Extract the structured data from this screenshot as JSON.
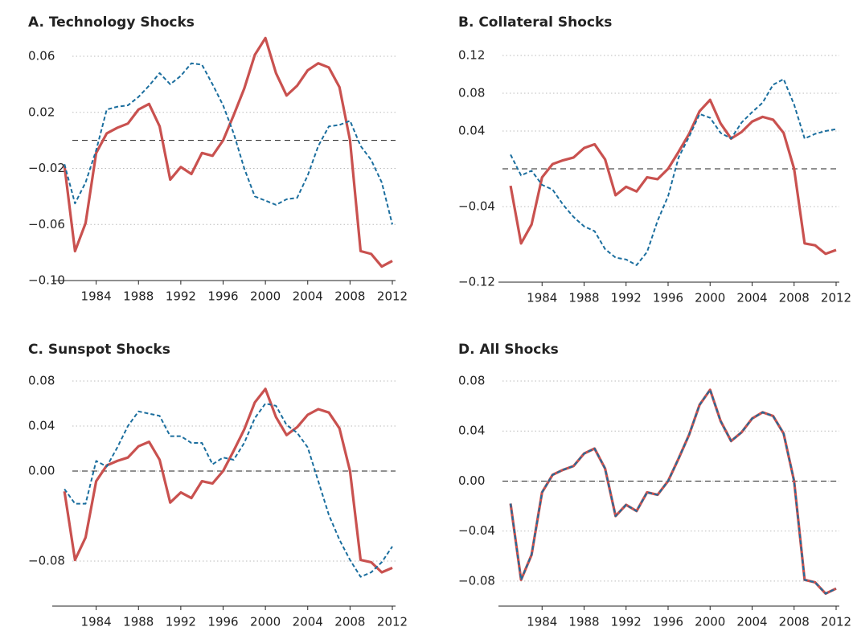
{
  "chart_data": [
    {
      "type": "line",
      "title": "A. Technology Shocks",
      "x": [
        1981,
        1982,
        1983,
        1984,
        1985,
        1986,
        1987,
        1988,
        1989,
        1990,
        1991,
        1992,
        1993,
        1994,
        1995,
        1996,
        1997,
        1998,
        1999,
        2000,
        2001,
        2002,
        2003,
        2004,
        2005,
        2006,
        2007,
        2008,
        2009,
        2010,
        2011,
        2012
      ],
      "series": [
        {
          "color": "#c9514f",
          "style": "solid",
          "values": [
            -0.018,
            -0.079,
            -0.059,
            -0.009,
            0.005,
            0.009,
            0.012,
            0.022,
            0.026,
            0.01,
            -0.028,
            -0.019,
            -0.024,
            -0.009,
            -0.011,
            0.0,
            0.018,
            0.037,
            0.061,
            0.073,
            0.048,
            0.032,
            0.039,
            0.05,
            0.055,
            0.052,
            0.038,
            0.0,
            -0.079,
            -0.081,
            -0.09,
            -0.086
          ]
        },
        {
          "color": "#1b6e9e",
          "style": "dashed",
          "values": [
            -0.017,
            -0.045,
            -0.03,
            -0.007,
            0.022,
            0.024,
            0.025,
            0.031,
            0.039,
            0.048,
            0.04,
            0.046,
            0.055,
            0.054,
            0.04,
            0.025,
            0.005,
            -0.02,
            -0.04,
            -0.043,
            -0.046,
            -0.042,
            -0.041,
            -0.025,
            -0.004,
            0.01,
            0.011,
            0.014,
            -0.004,
            -0.014,
            -0.03,
            -0.06
          ]
        }
      ],
      "xlim": [
        1980,
        2012
      ],
      "xticks": [
        1984,
        1988,
        1992,
        1996,
        2000,
        2004,
        2008,
        2012
      ],
      "ylim": [
        -0.1,
        0.06
      ],
      "yticks": [
        {
          "value": -0.1,
          "label": "−0.10"
        },
        {
          "value": -0.06,
          "label": "−0.06"
        },
        {
          "value": -0.02,
          "label": "−0.02"
        },
        0.02,
        0.06
      ],
      "reference_line": 0,
      "grid": true
    },
    {
      "type": "line",
      "title": "B. Collateral Shocks",
      "x": [
        1981,
        1982,
        1983,
        1984,
        1985,
        1986,
        1987,
        1988,
        1989,
        1990,
        1991,
        1992,
        1993,
        1994,
        1995,
        1996,
        1997,
        1998,
        1999,
        2000,
        2001,
        2002,
        2003,
        2004,
        2005,
        2006,
        2007,
        2008,
        2009,
        2010,
        2011,
        2012
      ],
      "series": [
        {
          "color": "#c9514f",
          "style": "solid",
          "values": [
            -0.018,
            -0.079,
            -0.059,
            -0.009,
            0.005,
            0.009,
            0.012,
            0.022,
            0.026,
            0.01,
            -0.028,
            -0.019,
            -0.024,
            -0.009,
            -0.011,
            0.0,
            0.018,
            0.037,
            0.061,
            0.073,
            0.048,
            0.032,
            0.039,
            0.05,
            0.055,
            0.052,
            0.038,
            0.0,
            -0.079,
            -0.081,
            -0.09,
            -0.086
          ]
        },
        {
          "color": "#1b6e9e",
          "style": "dashed",
          "values": [
            0.015,
            -0.007,
            -0.002,
            -0.017,
            -0.022,
            -0.038,
            -0.051,
            -0.061,
            -0.066,
            -0.085,
            -0.094,
            -0.096,
            -0.102,
            -0.088,
            -0.055,
            -0.029,
            0.012,
            0.034,
            0.058,
            0.054,
            0.038,
            0.032,
            0.049,
            0.06,
            0.07,
            0.089,
            0.095,
            0.068,
            0.032,
            0.037,
            0.04,
            0.042
          ]
        }
      ],
      "xlim": [
        1980,
        2012
      ],
      "xticks": [
        1984,
        1988,
        1992,
        1996,
        2000,
        2004,
        2008,
        2012
      ],
      "ylim": [
        -0.12,
        0.12
      ],
      "yticks": [
        {
          "value": -0.12,
          "label": "−0.12"
        },
        {
          "value": -0.04,
          "label": "−0.04"
        },
        0.04,
        0.08,
        0.12
      ],
      "reference_line": 0,
      "grid": true
    },
    {
      "type": "line",
      "title": "C. Sunspot Shocks",
      "x": [
        1981,
        1982,
        1983,
        1984,
        1985,
        1986,
        1987,
        1988,
        1989,
        1990,
        1991,
        1992,
        1993,
        1994,
        1995,
        1996,
        1997,
        1998,
        1999,
        2000,
        2001,
        2002,
        2003,
        2004,
        2005,
        2006,
        2007,
        2008,
        2009,
        2010,
        2011,
        2012
      ],
      "series": [
        {
          "color": "#c9514f",
          "style": "solid",
          "values": [
            -0.018,
            -0.079,
            -0.059,
            -0.009,
            0.005,
            0.009,
            0.012,
            0.022,
            0.026,
            0.01,
            -0.028,
            -0.019,
            -0.024,
            -0.009,
            -0.011,
            0.0,
            0.018,
            0.037,
            0.061,
            0.073,
            0.048,
            0.032,
            0.039,
            0.05,
            0.055,
            0.052,
            0.038,
            0.0,
            -0.079,
            -0.081,
            -0.09,
            -0.086
          ]
        },
        {
          "color": "#1b6e9e",
          "style": "dashed",
          "values": [
            -0.016,
            -0.029,
            -0.029,
            0.009,
            0.004,
            0.021,
            0.04,
            0.053,
            0.051,
            0.049,
            0.031,
            0.031,
            0.025,
            0.025,
            0.006,
            0.012,
            0.01,
            0.025,
            0.047,
            0.06,
            0.058,
            0.041,
            0.034,
            0.021,
            -0.009,
            -0.039,
            -0.061,
            -0.079,
            -0.094,
            -0.09,
            -0.081,
            -0.067
          ]
        }
      ],
      "xlim": [
        1980,
        2012
      ],
      "xticks": [
        1984,
        1988,
        1992,
        1996,
        2000,
        2004,
        2008,
        2012
      ],
      "ylim": [
        -0.12,
        0.08
      ],
      "yticks": [
        {
          "value": -0.08,
          "label": "−0.08"
        },
        {
          "value": 0,
          "label": "0.00"
        },
        0.04,
        0.08
      ],
      "reference_line": 0,
      "grid": true
    },
    {
      "type": "line",
      "title": "D. All Shocks",
      "x": [
        1981,
        1982,
        1983,
        1984,
        1985,
        1986,
        1987,
        1988,
        1989,
        1990,
        1991,
        1992,
        1993,
        1994,
        1995,
        1996,
        1997,
        1998,
        1999,
        2000,
        2001,
        2002,
        2003,
        2004,
        2005,
        2006,
        2007,
        2008,
        2009,
        2010,
        2011,
        2012
      ],
      "series": [
        {
          "color": "#c9514f",
          "style": "solid",
          "values": [
            -0.018,
            -0.079,
            -0.059,
            -0.009,
            0.005,
            0.009,
            0.012,
            0.022,
            0.026,
            0.01,
            -0.028,
            -0.019,
            -0.024,
            -0.009,
            -0.011,
            0.0,
            0.018,
            0.037,
            0.061,
            0.073,
            0.048,
            0.032,
            0.039,
            0.05,
            0.055,
            0.052,
            0.038,
            0.0,
            -0.079,
            -0.081,
            -0.09,
            -0.086
          ]
        },
        {
          "color": "#1b6e9e",
          "style": "dashed",
          "values": [
            -0.018,
            -0.079,
            -0.059,
            -0.009,
            0.005,
            0.009,
            0.012,
            0.022,
            0.026,
            0.01,
            -0.028,
            -0.019,
            -0.024,
            -0.009,
            -0.011,
            0.0,
            0.018,
            0.037,
            0.061,
            0.073,
            0.048,
            0.032,
            0.039,
            0.05,
            0.055,
            0.052,
            0.038,
            0.0,
            -0.079,
            -0.081,
            -0.09,
            -0.086
          ]
        }
      ],
      "xlim": [
        1980,
        2012
      ],
      "xticks": [
        1984,
        1988,
        1992,
        1996,
        2000,
        2004,
        2008,
        2012
      ],
      "ylim": [
        -0.1,
        0.08
      ],
      "yticks": [
        {
          "value": -0.08,
          "label": "−0.08"
        },
        {
          "value": -0.04,
          "label": "−0.04"
        },
        {
          "value": 0,
          "label": "0.00"
        },
        0.04,
        0.08
      ],
      "reference_line": 0,
      "grid": true
    }
  ]
}
